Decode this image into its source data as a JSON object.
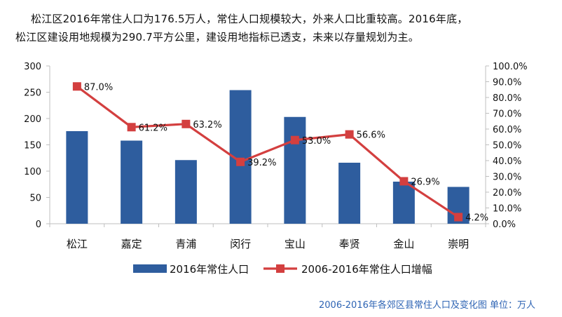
{
  "text": {
    "line1": "松江区2016年常住人口为176.5万人，常住人口规模较大，外来人口比重较高。2016年底，",
    "line2": "松江区建设用地规模为290.7平方公里，建设用地指标已透支，未来以存量规划为主。",
    "caption": "2006-2016年各郊区县常住人口及变化图 单位：万人"
  },
  "colors": {
    "bar": "#2e5d9e",
    "line": "#d33f3f",
    "axis": "#bfbfbf",
    "caption": "#2e64b4"
  },
  "chart_data": {
    "type": "bar",
    "categories": [
      "松江",
      "嘉定",
      "青浦",
      "闵行",
      "宝山",
      "奉贤",
      "金山",
      "崇明"
    ],
    "series": [
      {
        "name": "2016年常住人口",
        "type": "bar",
        "axis": "left",
        "values": [
          176,
          158,
          121,
          254,
          203,
          116,
          80,
          70
        ]
      },
      {
        "name": "2006-2016年常住人口增幅",
        "type": "line",
        "axis": "right",
        "values": [
          87.0,
          61.2,
          63.2,
          39.2,
          53.0,
          56.6,
          26.9,
          4.2
        ],
        "labels": [
          "87.0%",
          "61.2%",
          "63.2%",
          "39.2%",
          "53.0%",
          "56.6%",
          "26.9%",
          "4.2%"
        ]
      }
    ],
    "y_left": {
      "min": 0,
      "max": 300,
      "ticks": [
        "0",
        "50",
        "100",
        "150",
        "200",
        "250",
        "300"
      ]
    },
    "y_right": {
      "min": 0,
      "max": 100,
      "ticks": [
        "0.0%",
        "10.0%",
        "20.0%",
        "30.0%",
        "40.0%",
        "50.0%",
        "60.0%",
        "70.0%",
        "80.0%",
        "90.0%",
        "100.0%"
      ]
    },
    "grid": false,
    "legend": "bottom"
  }
}
